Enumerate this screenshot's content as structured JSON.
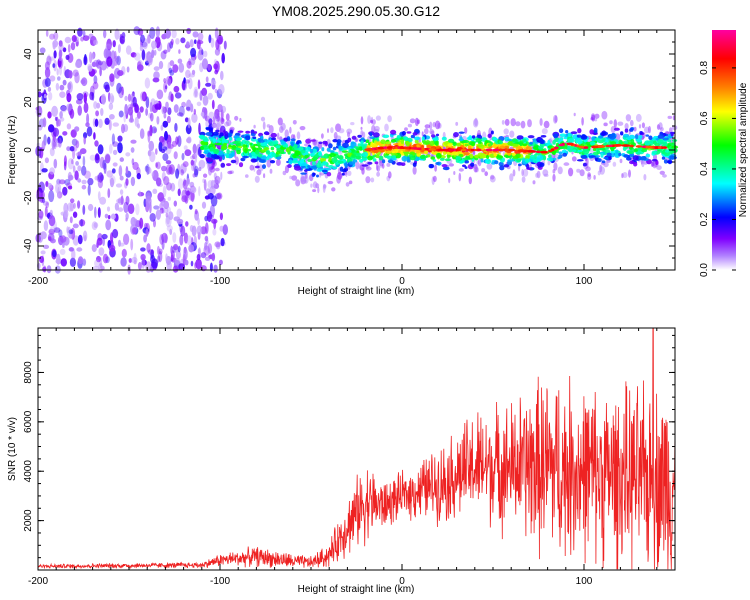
{
  "title": "YM08.2025.290.05.30.G12",
  "chart_data": [
    {
      "type": "heatmap",
      "name": "spectrogram",
      "xlabel": "Height of straight line (km)",
      "ylabel": "Frequency (Hz)",
      "xlim": [
        -200,
        150
      ],
      "ylim": [
        -50,
        50
      ],
      "xticks": [
        -200,
        -100,
        0,
        100
      ],
      "yticks": [
        -40,
        -20,
        0,
        20,
        40
      ],
      "colorbar": {
        "label": "Normalized spectral amplitude",
        "range": [
          0,
          0.95
        ],
        "ticks": [
          0.0,
          0.2,
          0.4,
          0.6,
          0.8
        ],
        "colors": [
          "#ffffff",
          "#8000ff",
          "#0000ff",
          "#00ffff",
          "#00ff00",
          "#ffff00",
          "#ff8000",
          "#ff0000",
          "#ff00a0"
        ]
      },
      "ridge": {
        "x": [
          -110,
          -90,
          -70,
          -60,
          -50,
          -40,
          -30,
          -20,
          -10,
          0,
          20,
          40,
          60,
          80,
          90,
          100,
          120,
          140,
          150
        ],
        "freq": [
          2,
          1,
          0,
          -1,
          -4,
          -4,
          -2,
          0,
          1,
          1,
          0,
          0,
          0,
          -1,
          3,
          1,
          2,
          1,
          1
        ]
      },
      "noise_region_x": [
        -200,
        -105
      ]
    },
    {
      "type": "line",
      "name": "snr",
      "xlabel": "Height of straight line (km)",
      "ylabel": "SNR (10 * v/v)",
      "xlim": [
        -200,
        150
      ],
      "ylim": [
        0,
        9800
      ],
      "xticks": [
        -200,
        -100,
        0,
        100
      ],
      "yticks": [
        2000,
        4000,
        6000,
        8000
      ],
      "color": "#ee2222",
      "envelope": {
        "x": [
          -200,
          -110,
          -100,
          -80,
          -60,
          -50,
          -40,
          -30,
          -20,
          -10,
          0,
          20,
          40,
          60,
          80,
          100,
          120,
          140,
          150
        ],
        "mean": [
          150,
          200,
          400,
          550,
          350,
          300,
          600,
          1800,
          2800,
          2600,
          3000,
          3500,
          4200,
          4200,
          4200,
          4000,
          3800,
          3600,
          3600
        ],
        "spread": [
          80,
          120,
          250,
          400,
          300,
          250,
          500,
          1200,
          1600,
          1000,
          900,
          1500,
          2200,
          2600,
          3800,
          3500,
          3500,
          3800,
          4000
        ]
      },
      "peak": {
        "x": 138,
        "y": 9800
      }
    }
  ]
}
